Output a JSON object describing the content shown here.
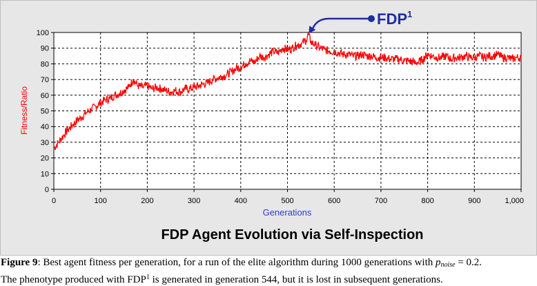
{
  "chart_data": {
    "type": "line",
    "title": "FDP Agent Evolution via Self-Inspection",
    "xlabel": "Generations",
    "ylabel": "Fitness/Ratio",
    "xlim": [
      0,
      1000
    ],
    "ylim": [
      0,
      100
    ],
    "x_ticks": [
      "0",
      "100",
      "200",
      "300",
      "400",
      "500",
      "600",
      "700",
      "800",
      "900",
      "1,000"
    ],
    "y_ticks": [
      "0",
      "10",
      "20",
      "30",
      "40",
      "50",
      "60",
      "70",
      "80",
      "90",
      "100"
    ],
    "grid": true,
    "series": [
      {
        "color": "#ff0000",
        "x": [
          0,
          10,
          20,
          30,
          40,
          50,
          60,
          70,
          80,
          90,
          100,
          110,
          120,
          130,
          140,
          150,
          160,
          170,
          180,
          190,
          200,
          210,
          220,
          230,
          240,
          250,
          260,
          270,
          280,
          290,
          300,
          310,
          320,
          330,
          340,
          350,
          360,
          370,
          380,
          390,
          400,
          410,
          420,
          430,
          440,
          450,
          460,
          470,
          480,
          490,
          500,
          510,
          520,
          530,
          540,
          544,
          550,
          560,
          570,
          580,
          590,
          600,
          610,
          620,
          630,
          640,
          650,
          660,
          670,
          680,
          690,
          700,
          710,
          720,
          730,
          740,
          750,
          760,
          770,
          780,
          790,
          800,
          810,
          820,
          830,
          840,
          850,
          860,
          870,
          880,
          890,
          900,
          910,
          920,
          930,
          940,
          950,
          960,
          970,
          980,
          990,
          1000
        ],
        "values": [
          26,
          30,
          34,
          38,
          41,
          44,
          46,
          49,
          51,
          53,
          55,
          57,
          58,
          60,
          61,
          63,
          65,
          70,
          66,
          65,
          66,
          64,
          65,
          64,
          63,
          62,
          63,
          62,
          64,
          64,
          65,
          66,
          67,
          68,
          70,
          71,
          72,
          73,
          75,
          77,
          78,
          80,
          82,
          81,
          85,
          84,
          86,
          88,
          87,
          90,
          89,
          90,
          92,
          93,
          95,
          99,
          94,
          92,
          90,
          89,
          88,
          88,
          87,
          86,
          86,
          85,
          85,
          86,
          85,
          85,
          84,
          84,
          84,
          83,
          83,
          83,
          82,
          82,
          81,
          81,
          83,
          86,
          85,
          84,
          84,
          85,
          83,
          84,
          84,
          85,
          84,
          84,
          85,
          84,
          85,
          85,
          86,
          84,
          84,
          83,
          84,
          84
        ]
      }
    ],
    "annotation": {
      "label": "FDP",
      "superscript": "1",
      "x": 544,
      "y": 99,
      "color": "#1c2ea0"
    }
  },
  "caption": {
    "figure_label": "Figure 9",
    "line1_before": ": Best agent fitness per generation, for a run of the elite algorithm during 1000 generations with ",
    "p_symbol": "p",
    "p_subscript": "noise",
    "line1_after": " = 0.2.",
    "line2_before": "The phenotype produced with FDP",
    "line2_sup": "1",
    "line2_after": " is generated in generation 544, but it is lost in subsequent generations."
  }
}
